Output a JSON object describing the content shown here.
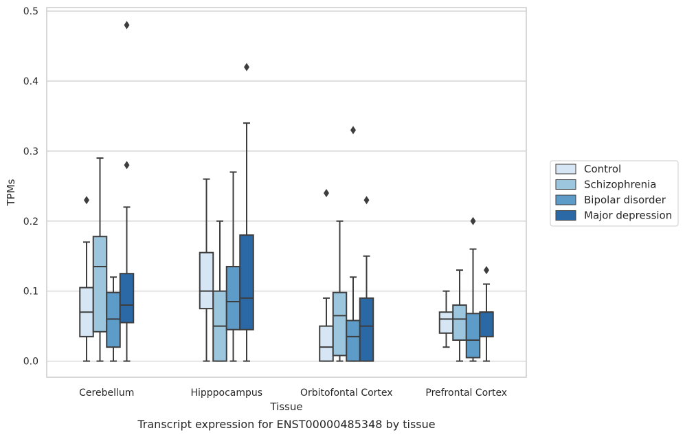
{
  "chart_data": {
    "type": "box",
    "xlabel": "Tissue",
    "ylabel": "TPMs",
    "caption": "Transcript expression for ENST00000485348 by tissue",
    "ylim": [
      -0.023,
      0.505
    ],
    "yticks": [
      0.0,
      0.1,
      0.2,
      0.3,
      0.4,
      0.5
    ],
    "ytick_labels": [
      "0.0",
      "0.1",
      "0.2",
      "0.3",
      "0.4",
      "0.5"
    ],
    "grid": "horizontal",
    "legend_position": "right",
    "categories": [
      "Cerebellum",
      "Hipppocampus",
      "Orbitofontal Cortex",
      "Prefrontal Cortex"
    ],
    "series": [
      {
        "name": "Control",
        "color": "#d6e6f4",
        "boxes": [
          {
            "whislo": 0.0,
            "q1": 0.035,
            "med": 0.07,
            "q3": 0.105,
            "whishi": 0.17,
            "fliers": [
              0.23
            ]
          },
          {
            "whislo": 0.0,
            "q1": 0.075,
            "med": 0.1,
            "q3": 0.155,
            "whishi": 0.26,
            "fliers": []
          },
          {
            "whislo": 0.0,
            "q1": 0.0,
            "med": 0.02,
            "q3": 0.05,
            "whishi": 0.09,
            "fliers": [
              0.24
            ]
          },
          {
            "whislo": 0.02,
            "q1": 0.04,
            "med": 0.06,
            "q3": 0.07,
            "whishi": 0.1,
            "fliers": []
          }
        ]
      },
      {
        "name": "Schizophrenia",
        "color": "#9cc5de",
        "boxes": [
          {
            "whislo": 0.0,
            "q1": 0.042,
            "med": 0.135,
            "q3": 0.178,
            "whishi": 0.29,
            "fliers": []
          },
          {
            "whislo": 0.0,
            "q1": 0.0,
            "med": 0.05,
            "q3": 0.1,
            "whishi": 0.2,
            "fliers": []
          },
          {
            "whislo": 0.0,
            "q1": 0.008,
            "med": 0.065,
            "q3": 0.098,
            "whishi": 0.2,
            "fliers": []
          },
          {
            "whislo": 0.0,
            "q1": 0.03,
            "med": 0.06,
            "q3": 0.08,
            "whishi": 0.13,
            "fliers": []
          }
        ]
      },
      {
        "name": "Bipolar disorder",
        "color": "#5d9cc9",
        "boxes": [
          {
            "whislo": 0.0,
            "q1": 0.02,
            "med": 0.06,
            "q3": 0.098,
            "whishi": 0.12,
            "fliers": []
          },
          {
            "whislo": 0.0,
            "q1": 0.045,
            "med": 0.085,
            "q3": 0.135,
            "whishi": 0.27,
            "fliers": []
          },
          {
            "whislo": 0.0,
            "q1": 0.0,
            "med": 0.035,
            "q3": 0.058,
            "whishi": 0.12,
            "fliers": [
              0.33
            ]
          },
          {
            "whislo": 0.0,
            "q1": 0.005,
            "med": 0.03,
            "q3": 0.068,
            "whishi": 0.16,
            "fliers": [
              0.2
            ]
          }
        ]
      },
      {
        "name": "Major depression",
        "color": "#2b68a6",
        "boxes": [
          {
            "whislo": 0.0,
            "q1": 0.055,
            "med": 0.08,
            "q3": 0.125,
            "whishi": 0.22,
            "fliers": [
              0.28,
              0.48
            ]
          },
          {
            "whislo": 0.0,
            "q1": 0.045,
            "med": 0.09,
            "q3": 0.18,
            "whishi": 0.34,
            "fliers": [
              0.42
            ]
          },
          {
            "whislo": 0.0,
            "q1": 0.0,
            "med": 0.05,
            "q3": 0.09,
            "whishi": 0.15,
            "fliers": [
              0.23
            ]
          },
          {
            "whislo": 0.0,
            "q1": 0.035,
            "med": 0.07,
            "q3": 0.07,
            "whishi": 0.11,
            "fliers": [
              0.13
            ]
          }
        ]
      }
    ]
  }
}
